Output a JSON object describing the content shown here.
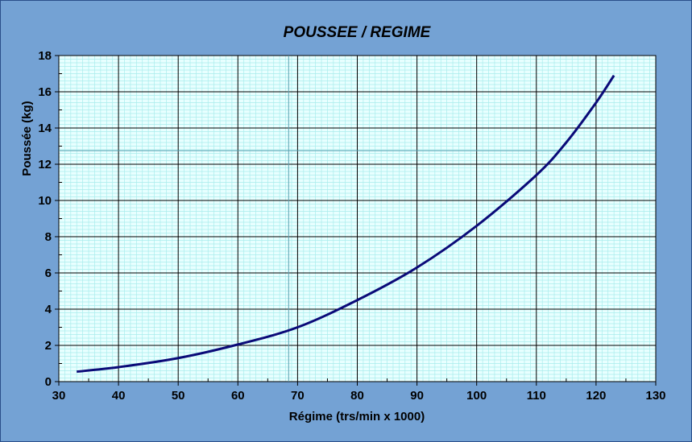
{
  "chart_data": {
    "type": "line",
    "title": "POUSSEE / REGIME",
    "xlabel": "Régime (trs/min x 1000)",
    "ylabel": "Poussée (kg)",
    "xlim": [
      30,
      130
    ],
    "ylim": [
      0,
      18
    ],
    "xticks": [
      "30",
      "40",
      "50",
      "60",
      "70",
      "80",
      "90",
      "100",
      "110",
      "120",
      "130"
    ],
    "yticks": [
      "0",
      "2",
      "4",
      "6",
      "8",
      "10",
      "12",
      "14",
      "16",
      "18"
    ],
    "grid": true,
    "series": [
      {
        "color": "#0a0a78",
        "x": [
          33,
          40,
          50,
          60,
          70,
          80,
          90,
          100,
          110,
          115,
          120,
          123
        ],
        "y": [
          0.55,
          0.8,
          1.3,
          2.05,
          3.0,
          4.5,
          6.3,
          8.6,
          11.4,
          13.2,
          15.4,
          16.9
        ]
      }
    ],
    "cursor": {
      "x": 68.5,
      "y": 12.75
    },
    "colors": {
      "background": "#74a2d4",
      "plot": "#e8ffff",
      "minor_grid": "#a8ecec",
      "major_grid": "#000000",
      "cursor": "#5aa0b0"
    }
  }
}
